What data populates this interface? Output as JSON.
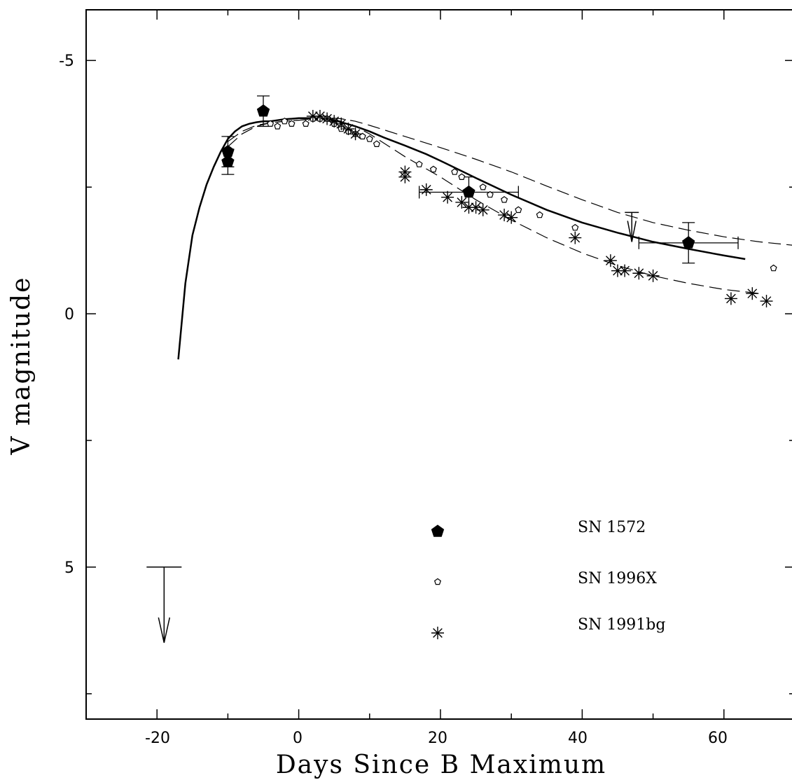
{
  "chart_data": {
    "type": "scatter",
    "xlabel": "Days Since B Maximum",
    "ylabel": "V magnitude",
    "xlim": [
      -30,
      70
    ],
    "ylim": [
      8,
      -6
    ],
    "y_inverted": true,
    "x_ticks": [
      "-20",
      "0",
      "20",
      "40",
      "60"
    ],
    "y_ticks": [
      "-5",
      "0",
      "5"
    ],
    "legend": {
      "placement": "lower-right",
      "entries": [
        {
          "label": "SN 1572",
          "marker": "filled-pentagon"
        },
        {
          "label": "SN 1996X",
          "marker": "open-pentagon"
        },
        {
          "label": "SN 1991bg",
          "marker": "asterisk"
        }
      ]
    },
    "series": [
      {
        "name": "SN 1572",
        "marker": "filled-pentagon",
        "points": [
          {
            "x": -10,
            "y": -3.2,
            "yerr": 0.3
          },
          {
            "x": -10,
            "y": -3.0,
            "yerr": 0.25
          },
          {
            "x": -5,
            "y": -4.0,
            "yerr": 0.3
          },
          {
            "x": 24,
            "y": -2.4,
            "yerr": 0.3,
            "xerr": 7
          },
          {
            "x": 55,
            "y": -1.4,
            "yerr": 0.4,
            "xerr": 7
          }
        ],
        "upper_limits": [
          {
            "x": -19,
            "y": 5.0
          },
          {
            "x": 47,
            "y": -2.0
          }
        ]
      },
      {
        "name": "SN 1996X",
        "marker": "open-pentagon",
        "points": [
          {
            "x": -4,
            "y": -3.75
          },
          {
            "x": -3,
            "y": -3.7
          },
          {
            "x": -2,
            "y": -3.8
          },
          {
            "x": -1,
            "y": -3.75
          },
          {
            "x": 1,
            "y": -3.75
          },
          {
            "x": 2,
            "y": -3.85
          },
          {
            "x": 3,
            "y": -3.85
          },
          {
            "x": 4,
            "y": -3.85
          },
          {
            "x": 5,
            "y": -3.75
          },
          {
            "x": 6,
            "y": -3.65
          },
          {
            "x": 7,
            "y": -3.6
          },
          {
            "x": 8,
            "y": -3.55
          },
          {
            "x": 9,
            "y": -3.5
          },
          {
            "x": 10,
            "y": -3.45
          },
          {
            "x": 11,
            "y": -3.35
          },
          {
            "x": 17,
            "y": -2.95
          },
          {
            "x": 19,
            "y": -2.85
          },
          {
            "x": 22,
            "y": -2.8
          },
          {
            "x": 23,
            "y": -2.7
          },
          {
            "x": 26,
            "y": -2.5
          },
          {
            "x": 27,
            "y": -2.35
          },
          {
            "x": 29,
            "y": -2.25
          },
          {
            "x": 31,
            "y": -2.05
          },
          {
            "x": 34,
            "y": -1.95
          },
          {
            "x": 39,
            "y": -1.7
          },
          {
            "x": 67,
            "y": -0.9
          }
        ]
      },
      {
        "name": "SN 1991bg",
        "marker": "asterisk",
        "points": [
          {
            "x": 2,
            "y": -3.9
          },
          {
            "x": 3,
            "y": -3.9
          },
          {
            "x": 4,
            "y": -3.85
          },
          {
            "x": 5,
            "y": -3.8
          },
          {
            "x": 6,
            "y": -3.75
          },
          {
            "x": 7,
            "y": -3.65
          },
          {
            "x": 8,
            "y": -3.55
          },
          {
            "x": 15,
            "y": -2.8
          },
          {
            "x": 15,
            "y": -2.7
          },
          {
            "x": 18,
            "y": -2.45
          },
          {
            "x": 21,
            "y": -2.3
          },
          {
            "x": 23,
            "y": -2.2
          },
          {
            "x": 24,
            "y": -2.1
          },
          {
            "x": 25,
            "y": -2.1
          },
          {
            "x": 26,
            "y": -2.05
          },
          {
            "x": 29,
            "y": -1.95
          },
          {
            "x": 30,
            "y": -1.9
          },
          {
            "x": 39,
            "y": -1.5
          },
          {
            "x": 44,
            "y": -1.05
          },
          {
            "x": 45,
            "y": -0.85
          },
          {
            "x": 46,
            "y": -0.85
          },
          {
            "x": 48,
            "y": -0.8
          },
          {
            "x": 50,
            "y": -0.75
          },
          {
            "x": 61,
            "y": -0.3
          },
          {
            "x": 64,
            "y": -0.4
          },
          {
            "x": 66,
            "y": -0.25
          }
        ]
      }
    ],
    "curves": [
      {
        "style": "solid",
        "x": [
          -17,
          -16,
          -15,
          -14,
          -13,
          -12,
          -11,
          -10,
          -9,
          -8,
          -7,
          -6,
          -5,
          -4,
          -3,
          -2,
          -1,
          0,
          1,
          2,
          3,
          4,
          5,
          6,
          8,
          10,
          12,
          15,
          18,
          20,
          25,
          30,
          35,
          40,
          45,
          50,
          55,
          60,
          63
        ],
        "y": [
          0.9,
          -0.6,
          -1.55,
          -2.1,
          -2.55,
          -2.9,
          -3.2,
          -3.45,
          -3.6,
          -3.7,
          -3.75,
          -3.78,
          -3.8,
          -3.8,
          -3.82,
          -3.84,
          -3.85,
          -3.86,
          -3.86,
          -3.86,
          -3.85,
          -3.84,
          -3.82,
          -3.78,
          -3.7,
          -3.6,
          -3.48,
          -3.32,
          -3.15,
          -3.02,
          -2.68,
          -2.35,
          -2.05,
          -1.8,
          -1.6,
          -1.42,
          -1.28,
          -1.15,
          -1.08
        ]
      },
      {
        "style": "dashed",
        "x": [
          -10,
          -8,
          -6,
          -4,
          -2,
          0,
          2,
          4,
          6,
          8,
          10,
          15,
          20,
          25,
          30,
          35,
          40,
          45,
          50,
          55,
          60,
          65,
          70
        ],
        "y": [
          -3.4,
          -3.6,
          -3.72,
          -3.77,
          -3.8,
          -3.82,
          -3.85,
          -3.87,
          -3.85,
          -3.8,
          -3.72,
          -3.5,
          -3.28,
          -3.05,
          -2.8,
          -2.52,
          -2.25,
          -2.0,
          -1.8,
          -1.65,
          -1.52,
          -1.42,
          -1.35
        ]
      },
      {
        "style": "dashed",
        "x": [
          -10,
          -8,
          -6,
          -4,
          -2,
          0,
          2,
          4,
          6,
          8,
          10,
          15,
          20,
          25,
          30,
          35,
          40,
          45,
          50,
          55,
          60,
          65
        ],
        "y": [
          -3.3,
          -3.55,
          -3.7,
          -3.77,
          -3.8,
          -3.82,
          -3.84,
          -3.85,
          -3.8,
          -3.7,
          -3.55,
          -3.1,
          -2.7,
          -2.25,
          -1.85,
          -1.5,
          -1.2,
          -0.95,
          -0.75,
          -0.6,
          -0.48,
          -0.4
        ]
      }
    ]
  }
}
